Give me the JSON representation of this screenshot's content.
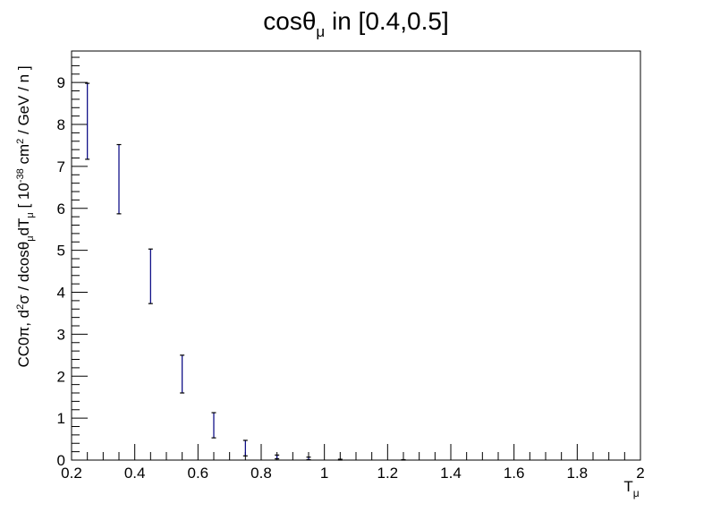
{
  "chart_data": {
    "type": "scatter",
    "title_main": "cosθ",
    "title_sub": "μ",
    "title_rest": " in [0.4,0.5]",
    "xlabel_main": "T",
    "xlabel_sub": "μ",
    "ylabel_parts": {
      "p1": "CC0π, d",
      "sup1": "2",
      "p2": "σ / dcosθ",
      "sub1": "μ",
      "p3": "dT",
      "sub2": "μ",
      "p4": " [ 10",
      "sup2": "-38",
      "p5": " cm",
      "sup3": "2",
      "p6": " / GeV / n ]"
    },
    "xlim": [
      0.2,
      2.0
    ],
    "ylim": [
      0,
      9.75
    ],
    "x_ticks": [
      "0.2",
      "0.4",
      "0.6",
      "0.8",
      "1",
      "1.2",
      "1.4",
      "1.6",
      "1.8",
      "2"
    ],
    "y_ticks": [
      "0",
      "1",
      "2",
      "3",
      "4",
      "5",
      "6",
      "7",
      "8",
      "9"
    ],
    "series": [
      {
        "color": "#000080",
        "points": [
          {
            "x": 0.25,
            "low": 7.17,
            "high": 8.98
          },
          {
            "x": 0.35,
            "low": 5.87,
            "high": 7.52
          },
          {
            "x": 0.45,
            "low": 3.73,
            "high": 5.03
          },
          {
            "x": 0.55,
            "low": 1.6,
            "high": 2.5
          },
          {
            "x": 0.65,
            "low": 0.53,
            "high": 1.13
          },
          {
            "x": 0.75,
            "low": 0.1,
            "high": 0.47
          },
          {
            "x": 0.85,
            "low": 0.03,
            "high": 0.12
          },
          {
            "x": 0.95,
            "low": 0.01,
            "high": 0.07
          },
          {
            "x": 1.05,
            "low": 0.0,
            "high": 0.02
          },
          {
            "x": 1.25,
            "low": 0.0,
            "high": 0.01
          }
        ]
      }
    ]
  }
}
